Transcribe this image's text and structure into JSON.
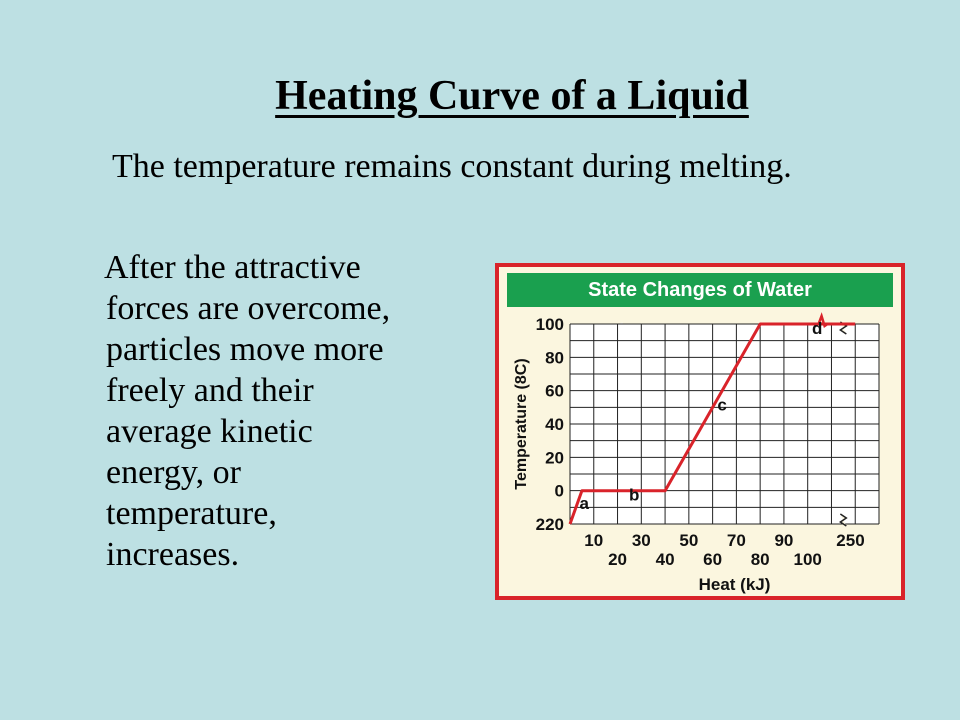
{
  "slide": {
    "title": "Heating Curve of a Liquid",
    "paragraph1": "The temperature remains constant during melting.",
    "paragraph2_lines": [
      "After the attractive",
      "forces are overcome,",
      "particles move more",
      "freely and their",
      "average kinetic",
      "energy, or",
      "temperature,",
      "increases."
    ]
  },
  "chart_data": {
    "type": "line",
    "title": "State Changes of Water",
    "xlabel": "Heat (kJ)",
    "ylabel": "Temperature (8C)",
    "x_tick_labels": [
      "10",
      "20",
      "30",
      "40",
      "50",
      "60",
      "70",
      "80",
      "90",
      "100",
      "250"
    ],
    "y_tick_labels": [
      "220",
      "0",
      "20",
      "40",
      "60",
      "80",
      "100"
    ],
    "ylim": [
      -20,
      100
    ],
    "grid": true,
    "axis_break": "between 100 and 250 kJ",
    "series": [
      {
        "points": [
          {
            "x": 0,
            "y": -20
          },
          {
            "x": 5,
            "y": 0
          },
          {
            "x": 40,
            "y": 0
          },
          {
            "x": 80,
            "y": 100
          },
          {
            "x": 110,
            "y": 100
          },
          {
            "x": 250,
            "y": 100
          }
        ]
      }
    ],
    "segment_labels": [
      {
        "text": "a",
        "x": 6,
        "y": -11
      },
      {
        "text": "b",
        "x": 27,
        "y": -6
      },
      {
        "text": "c",
        "x": 64,
        "y": 48
      },
      {
        "text": "d",
        "x": 104,
        "y": 94
      }
    ],
    "colors": {
      "line": "#d9232a",
      "banner": "#1aa04f",
      "frame": "#d9232a",
      "panel": "#fbf6df"
    }
  }
}
